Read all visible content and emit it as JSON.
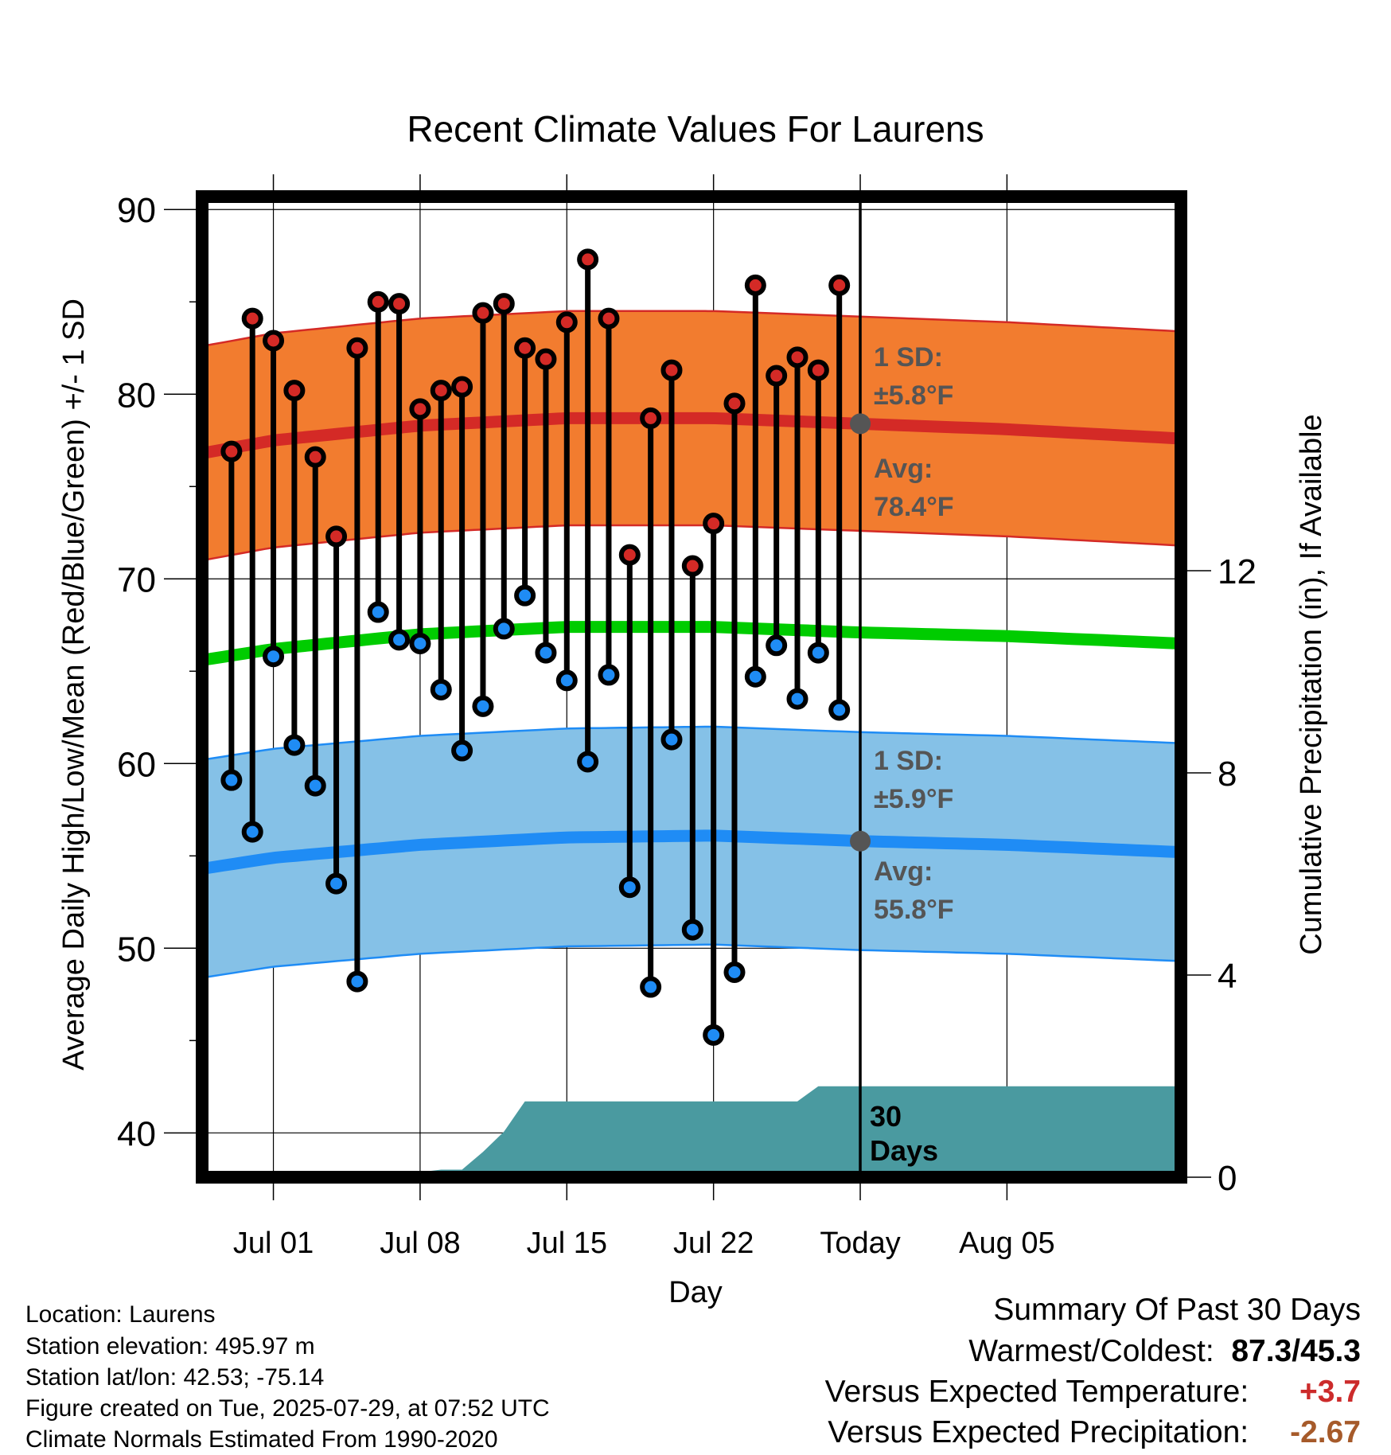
{
  "chart_data": {
    "type": "line",
    "title": "Recent Climate Values For Laurens",
    "xlabel": "Day",
    "ylabel": "Average Daily High/Low/Mean (Red/Blue/Green) +/- 1 SD",
    "y2label": "Cumulative Precipitation (in), If Available",
    "ylim": [
      37.6,
      90.7
    ],
    "y2lim": [
      0,
      19.4
    ],
    "xlim": [
      -3.4,
      43.3
    ],
    "yticks": [
      40,
      50,
      60,
      70,
      80,
      90
    ],
    "y2ticks": [
      0,
      4,
      8,
      12
    ],
    "x_tick_labels": [
      {
        "day": 0,
        "label": "Jul 01"
      },
      {
        "day": 7,
        "label": "Jul 08"
      },
      {
        "day": 14,
        "label": "Jul 15"
      },
      {
        "day": 21,
        "label": "Jul 22"
      },
      {
        "day": 28,
        "label": "Today"
      },
      {
        "day": 35,
        "label": "Aug 05"
      }
    ],
    "grid": true,
    "today_day": 28,
    "period_label": "30 Days",
    "days": [
      -2,
      -1,
      0,
      1,
      2,
      3,
      4,
      5,
      6,
      7,
      8,
      9,
      10,
      11,
      12,
      13,
      14,
      15,
      16,
      17,
      18,
      19,
      20,
      21,
      22,
      23,
      24,
      25,
      26,
      27
    ],
    "daily_high": [
      76.9,
      84.1,
      82.9,
      80.2,
      76.6,
      72.3,
      82.5,
      85.0,
      84.9,
      79.2,
      80.2,
      80.4,
      84.4,
      84.9,
      82.5,
      81.9,
      83.9,
      87.3,
      84.1,
      71.3,
      78.7,
      81.3,
      70.7,
      73.0,
      79.5,
      85.9,
      81.0,
      82.0,
      81.3,
      85.9
    ],
    "daily_low": [
      59.1,
      56.3,
      65.8,
      61.0,
      58.8,
      53.5,
      48.2,
      68.2,
      66.7,
      66.5,
      64.0,
      60.7,
      63.1,
      67.3,
      69.1,
      66.0,
      64.5,
      60.1,
      64.8,
      53.3,
      47.9,
      61.3,
      51.0,
      45.3,
      48.7,
      64.7,
      66.4,
      63.5,
      66.0,
      62.9
    ],
    "normals": {
      "days": [
        -3.4,
        0,
        7,
        14,
        21,
        28,
        35,
        43.3
      ],
      "high_mean": [
        76.8,
        77.5,
        78.3,
        78.7,
        78.7,
        78.4,
        78.1,
        77.6
      ],
      "high_sd": 5.8,
      "low_mean": [
        54.3,
        54.9,
        55.6,
        56.0,
        56.1,
        55.8,
        55.6,
        55.2
      ],
      "low_sd": 5.9,
      "mean_mean": [
        65.6,
        66.2,
        67.0,
        67.4,
        67.4,
        67.1,
        66.9,
        66.5
      ]
    },
    "cumulative_precip": {
      "days": [
        -2,
        -1,
        0,
        1,
        2,
        3,
        4,
        5,
        6,
        7,
        8,
        9,
        10,
        11,
        12,
        13,
        14,
        15,
        16,
        17,
        18,
        19,
        20,
        21,
        22,
        23,
        24,
        25,
        26,
        27,
        28,
        43.3
      ],
      "values": [
        0.02,
        0.05,
        0.05,
        0.05,
        0.05,
        0.05,
        0.05,
        0.08,
        0.1,
        0.1,
        0.15,
        0.15,
        0.5,
        0.9,
        1.5,
        1.5,
        1.5,
        1.5,
        1.5,
        1.5,
        1.5,
        1.5,
        1.5,
        1.5,
        1.5,
        1.5,
        1.5,
        1.5,
        1.8,
        1.8,
        1.8,
        1.8
      ]
    },
    "annotations": {
      "high_sd_label": "1 SD:",
      "high_sd_value": "±5.8°F",
      "high_avg_label": "Avg:",
      "high_avg_value": "78.4°F",
      "low_sd_label": "1 SD:",
      "low_sd_value": "±5.9°F",
      "low_avg_label": "Avg:",
      "low_avg_value": "55.8°F",
      "high_avg_marker": 78.4,
      "low_avg_marker": 55.8
    },
    "colors": {
      "high_band": "#f27c2f",
      "high_line": "#d42a26",
      "low_band": "#85c1e7",
      "low_line": "#1f8cf5",
      "mean_line": "#00cc00",
      "precip": "#4a9aa0",
      "high_marker": "#d42a26",
      "low_marker": "#1f8cf5",
      "avg_marker": "#555555",
      "annotation_text": "#555555"
    }
  },
  "info": {
    "location": "Location: Laurens",
    "elevation": "Station elevation: 495.97 m",
    "latlon": "Station lat/lon: 42.53; -75.14",
    "created": "Figure created on Tue, 2025-07-29, at 07:52 UTC",
    "normals": "Climate Normals Estimated From 1990-2020"
  },
  "summary": {
    "title": "Summary Of Past 30 Days",
    "warmest_label": "Warmest/Coldest:",
    "warmest_value": "87.3/45.3",
    "temp_label": "Versus Expected Temperature:",
    "temp_value": "+3.7",
    "temp_color": "#cc2b2b",
    "precip_label": "Versus Expected Precipitation:",
    "precip_value": "-2.67",
    "precip_color": "#a65a2a"
  }
}
